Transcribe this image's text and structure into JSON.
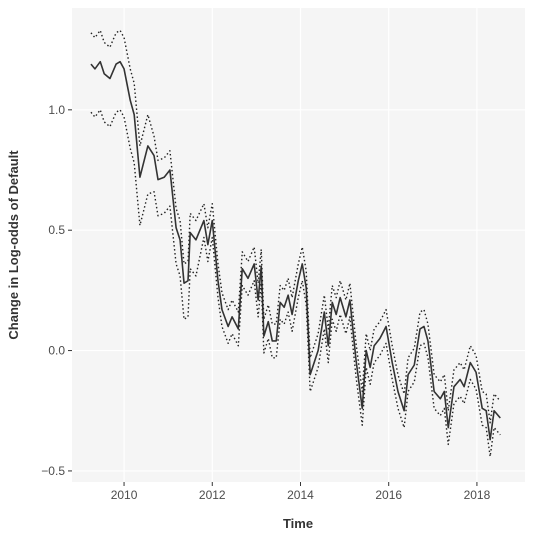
{
  "chart_data": {
    "type": "line",
    "x_label": "Time",
    "y_label": "Change in Log-odds of Default",
    "x": [
      2009.25,
      2009.34,
      2009.46,
      2009.55,
      2009.68,
      2009.82,
      2009.91,
      2010.0,
      2010.14,
      2010.23,
      2010.36,
      2010.54,
      2010.68,
      2010.77,
      2010.91,
      2011.04,
      2011.18,
      2011.27,
      2011.36,
      2011.45,
      2011.5,
      2011.63,
      2011.81,
      2011.9,
      2012.0,
      2012.13,
      2012.22,
      2012.36,
      2012.45,
      2012.59,
      2012.68,
      2012.81,
      2012.95,
      2013.04,
      2013.11,
      2013.17,
      2013.27,
      2013.36,
      2013.45,
      2013.54,
      2013.63,
      2013.72,
      2013.81,
      2013.95,
      2014.04,
      2014.13,
      2014.22,
      2014.4,
      2014.54,
      2014.63,
      2014.72,
      2014.81,
      2014.9,
      2015.03,
      2015.12,
      2015.26,
      2015.4,
      2015.49,
      2015.58,
      2015.67,
      2015.8,
      2015.94,
      2016.08,
      2016.21,
      2016.35,
      2016.44,
      2016.58,
      2016.71,
      2016.8,
      2016.89,
      2017.03,
      2017.17,
      2017.26,
      2017.35,
      2017.48,
      2017.62,
      2017.71,
      2017.85,
      2017.98,
      2018.12,
      2018.21,
      2018.3,
      2018.39,
      2018.53
    ],
    "series": [
      {
        "color": "#333333",
        "style": "solid",
        "values": [
          1.19,
          1.17,
          1.2,
          1.15,
          1.13,
          1.19,
          1.2,
          1.17,
          1.04,
          0.98,
          0.72,
          0.85,
          0.81,
          0.71,
          0.72,
          0.75,
          0.51,
          0.46,
          0.28,
          0.29,
          0.49,
          0.46,
          0.54,
          0.44,
          0.54,
          0.29,
          0.17,
          0.1,
          0.14,
          0.09,
          0.34,
          0.3,
          0.36,
          0.21,
          0.35,
          0.06,
          0.12,
          0.04,
          0.04,
          0.2,
          0.18,
          0.23,
          0.15,
          0.29,
          0.36,
          0.26,
          -0.1,
          0.0,
          0.16,
          0.02,
          0.2,
          0.15,
          0.22,
          0.14,
          0.21,
          -0.04,
          -0.24,
          0.0,
          -0.07,
          0.02,
          0.05,
          0.1,
          -0.05,
          -0.17,
          -0.25,
          -0.1,
          -0.06,
          0.09,
          0.1,
          0.04,
          -0.17,
          -0.2,
          -0.17,
          -0.32,
          -0.15,
          -0.12,
          -0.15,
          -0.05,
          -0.09,
          -0.24,
          -0.25,
          -0.37,
          -0.25,
          -0.28
        ]
      },
      {
        "color": "#222222",
        "style": "dotted",
        "values": [
          1.32,
          1.3,
          1.33,
          1.28,
          1.26,
          1.32,
          1.33,
          1.3,
          1.17,
          1.11,
          0.85,
          0.98,
          0.89,
          0.79,
          0.8,
          0.83,
          0.59,
          0.54,
          0.36,
          0.37,
          0.57,
          0.54,
          0.61,
          0.51,
          0.61,
          0.36,
          0.24,
          0.17,
          0.21,
          0.16,
          0.41,
          0.37,
          0.43,
          0.28,
          0.42,
          0.13,
          0.19,
          0.11,
          0.11,
          0.27,
          0.25,
          0.3,
          0.22,
          0.36,
          0.43,
          0.33,
          -0.03,
          0.07,
          0.23,
          0.09,
          0.27,
          0.22,
          0.29,
          0.21,
          0.28,
          0.03,
          -0.17,
          0.07,
          0.0,
          0.09,
          0.12,
          0.17,
          0.02,
          -0.1,
          -0.18,
          -0.03,
          0.01,
          0.16,
          0.17,
          0.11,
          -0.1,
          -0.13,
          -0.1,
          -0.25,
          -0.08,
          -0.05,
          -0.08,
          0.02,
          -0.02,
          -0.17,
          -0.18,
          -0.3,
          -0.18,
          -0.21
        ]
      },
      {
        "color": "#222222",
        "style": "dotted",
        "values": [
          0.99,
          0.97,
          1.0,
          0.95,
          0.93,
          0.99,
          1.0,
          0.97,
          0.84,
          0.78,
          0.52,
          0.65,
          0.66,
          0.56,
          0.57,
          0.6,
          0.36,
          0.31,
          0.13,
          0.14,
          0.34,
          0.31,
          0.47,
          0.37,
          0.47,
          0.22,
          0.1,
          0.03,
          0.07,
          0.02,
          0.27,
          0.23,
          0.29,
          0.14,
          0.28,
          -0.01,
          0.05,
          -0.03,
          -0.03,
          0.13,
          0.11,
          0.16,
          0.08,
          0.22,
          0.29,
          0.19,
          -0.17,
          -0.07,
          0.09,
          -0.05,
          0.13,
          0.08,
          0.15,
          0.07,
          0.14,
          -0.11,
          -0.31,
          -0.07,
          -0.14,
          -0.05,
          -0.02,
          0.03,
          -0.12,
          -0.24,
          -0.32,
          -0.17,
          -0.13,
          0.02,
          0.03,
          -0.03,
          -0.24,
          -0.27,
          -0.24,
          -0.39,
          -0.22,
          -0.19,
          -0.22,
          -0.12,
          -0.16,
          -0.31,
          -0.32,
          -0.44,
          -0.32,
          -0.35
        ]
      }
    ],
    "xlim": [
      2008.82,
      2019.09
    ],
    "ylim": [
      -0.546,
      1.423
    ],
    "xticks": [
      2010,
      2012,
      2014,
      2016,
      2018
    ],
    "yticks": [
      {
        "value": -0.5,
        "label": "−0.5"
      },
      {
        "value": 0,
        "label": "0.0"
      },
      0.5,
      {
        "value": 1,
        "label": "1.0"
      }
    ],
    "grid": true,
    "panel_color": "#f5f5f5"
  }
}
